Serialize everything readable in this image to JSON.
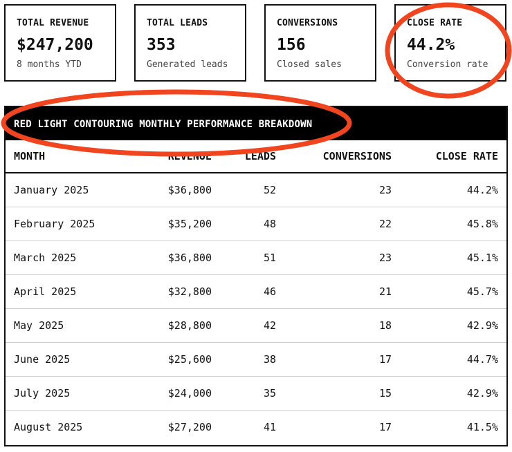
{
  "kpis": [
    {
      "title": "TOTAL REVENUE",
      "value": "$247,200",
      "sub": "8 months YTD"
    },
    {
      "title": "TOTAL LEADS",
      "value": "353",
      "sub": "Generated leads"
    },
    {
      "title": "CONVERSIONS",
      "value": "156",
      "sub": "Closed sales"
    },
    {
      "title": "CLOSE RATE",
      "value": "44.2%",
      "sub": "Conversion rate"
    }
  ],
  "table": {
    "title": "RED LIGHT CONTOURING MONTHLY PERFORMANCE BREAKDOWN",
    "headers": [
      "MONTH",
      "REVENUE",
      "LEADS",
      "CONVERSIONS",
      "CLOSE RATE"
    ],
    "rows": [
      [
        "January 2025",
        "$36,800",
        "52",
        "23",
        "44.2%"
      ],
      [
        "February 2025",
        "$35,200",
        "48",
        "22",
        "45.8%"
      ],
      [
        "March 2025",
        "$36,800",
        "51",
        "23",
        "45.1%"
      ],
      [
        "April 2025",
        "$32,800",
        "46",
        "21",
        "45.7%"
      ],
      [
        "May 2025",
        "$28,800",
        "42",
        "18",
        "42.9%"
      ],
      [
        "June 2025",
        "$25,600",
        "38",
        "17",
        "44.7%"
      ],
      [
        "July 2025",
        "$24,000",
        "35",
        "15",
        "42.9%"
      ],
      [
        "August 2025",
        "$27,200",
        "41",
        "17",
        "41.5%"
      ]
    ]
  },
  "annotation_color": "#f0451f"
}
